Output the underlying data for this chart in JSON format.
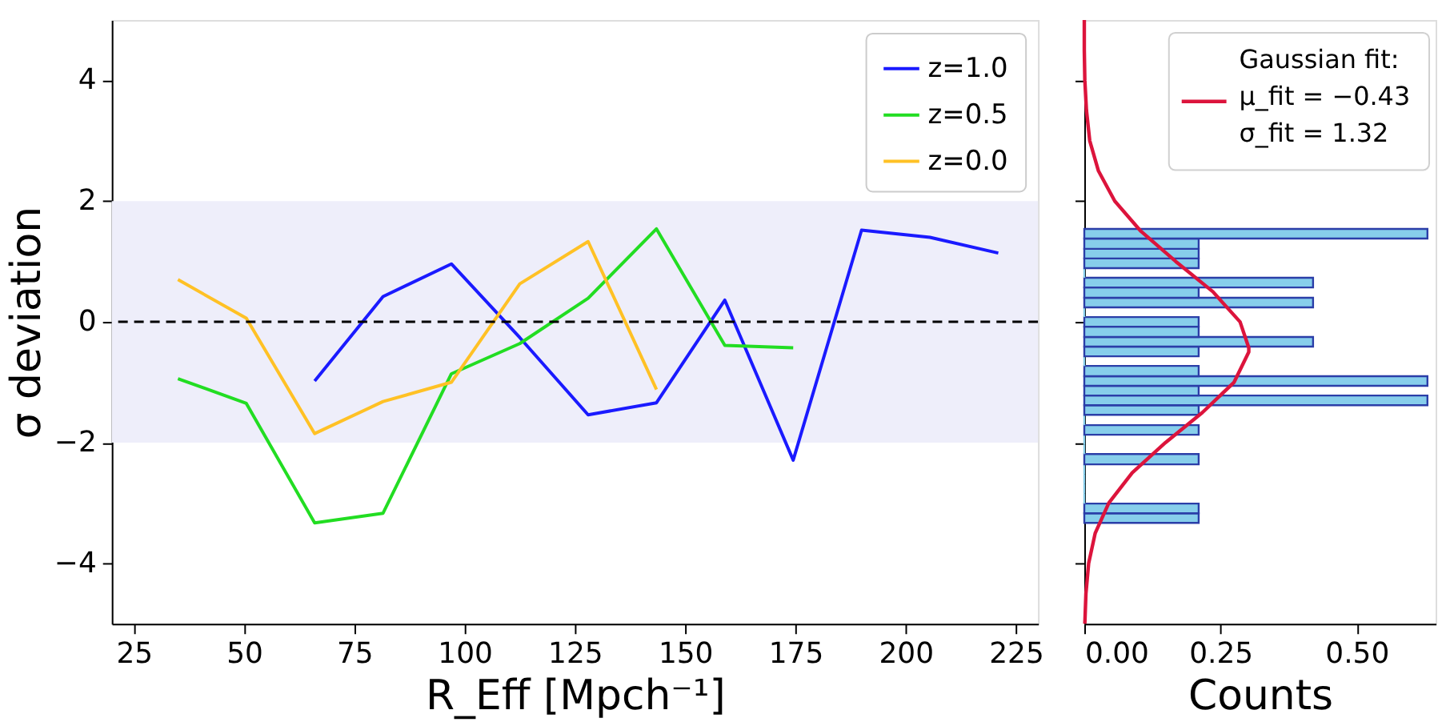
{
  "chart_data": [
    {
      "type": "line",
      "xlabel": "R_Eff [Mpch⁻¹]",
      "ylabel": "σ deviation",
      "xlim": [
        20,
        230
      ],
      "xticks": [
        25,
        50,
        75,
        100,
        125,
        150,
        175,
        200,
        225
      ],
      "ylim": [
        -5,
        5
      ],
      "yticks": [
        {
          "value": -4,
          "label": "−4"
        },
        {
          "value": -2,
          "label": "−2"
        },
        0,
        2,
        4
      ],
      "legend": "top right",
      "grid": false,
      "bands": [
        {
          "axis": "y",
          "from": -2,
          "to": 2,
          "color": "#eeeefa"
        }
      ],
      "ref_lines": [
        {
          "axis": "y",
          "value": 0,
          "color": "#000000",
          "line_style": "dashed"
        }
      ],
      "series": [
        {
          "name": "z=1.0",
          "color": "#1a1aff",
          "x": [
            66.0,
            81.5,
            97.0,
            112.5,
            128.0,
            143.5,
            159.0,
            174.5,
            190.0,
            205.5,
            221.0
          ],
          "values": [
            -0.98,
            0.42,
            0.96,
            -0.26,
            -1.54,
            -1.34,
            0.36,
            -2.29,
            1.52,
            1.4,
            1.14
          ]
        },
        {
          "name": "z=0.5",
          "color": "#22dd22",
          "x": [
            35.0,
            50.5,
            66.0,
            81.5,
            97.0,
            112.5,
            128.0,
            143.5,
            159.0,
            174.5
          ],
          "values": [
            -0.94,
            -1.35,
            -3.33,
            -3.17,
            -0.86,
            -0.36,
            0.39,
            1.54,
            -0.39,
            -0.43
          ]
        },
        {
          "name": "z=0.0",
          "color": "#ffc125",
          "x": [
            35.0,
            50.5,
            66.0,
            81.5,
            97.0,
            112.5,
            128.0,
            143.5
          ],
          "values": [
            0.7,
            0.06,
            -1.85,
            -1.32,
            -1.0,
            0.63,
            1.33,
            -1.12
          ]
        }
      ]
    },
    {
      "type": "histogram",
      "orientation": "horizontal",
      "xlabel": "Counts",
      "xlim": [
        0,
        0.645
      ],
      "xticks": [
        {
          "value": 0,
          "label": "0.00"
        },
        {
          "value": 0.25,
          "label": "0.25"
        },
        {
          "value": 0.5,
          "label": "0.50"
        }
      ],
      "ylim": [
        -5,
        5
      ],
      "yticks": [
        -4,
        -2,
        0,
        2,
        4
      ],
      "tick_labels": "x",
      "legend": "top right",
      "grid": false,
      "color": "#87ceeb",
      "bins": [
        -3.33,
        -3.17,
        -3.01,
        -2.84,
        -2.68,
        -2.52,
        -2.36,
        -2.19,
        -2.03,
        -1.87,
        -1.71,
        -1.54,
        -1.38,
        -1.22,
        -1.06,
        -0.9,
        -0.73,
        -0.57,
        -0.41,
        -0.25,
        -0.08,
        0.08,
        0.24,
        0.4,
        0.57,
        0.73,
        0.89,
        1.05,
        1.21,
        1.38,
        1.54
      ],
      "values": [
        0.21,
        0.21,
        0,
        0,
        0,
        0,
        0.21,
        0,
        0,
        0.21,
        0,
        0.21,
        0.63,
        0.21,
        0.63,
        0.21,
        0,
        0.21,
        0.42,
        0.21,
        0.21,
        0,
        0.42,
        0.21,
        0.42,
        0,
        0.21,
        0.21,
        0.21,
        0.63
      ],
      "series": [
        {
          "type": "line",
          "name": "Gaussian fit:\nμ_fit = −0.43\nσ_fit = 1.32",
          "color": "#dc143c",
          "x": [
            -5,
            -4.5,
            -4,
            -3.5,
            -3,
            -2.5,
            -2,
            -1.5,
            -1,
            -0.5,
            -0.43,
            0,
            0.5,
            1,
            1.5,
            2,
            2.5,
            3,
            3.5,
            4,
            4.5,
            5
          ],
          "values": [
            0.001,
            0.003,
            0.008,
            0.02,
            0.045,
            0.088,
            0.149,
            0.217,
            0.275,
            0.302,
            0.302,
            0.286,
            0.236,
            0.168,
            0.104,
            0.056,
            0.026,
            0.01,
            0.004,
            0.001,
            0.0,
            0.0
          ]
        }
      ]
    }
  ]
}
